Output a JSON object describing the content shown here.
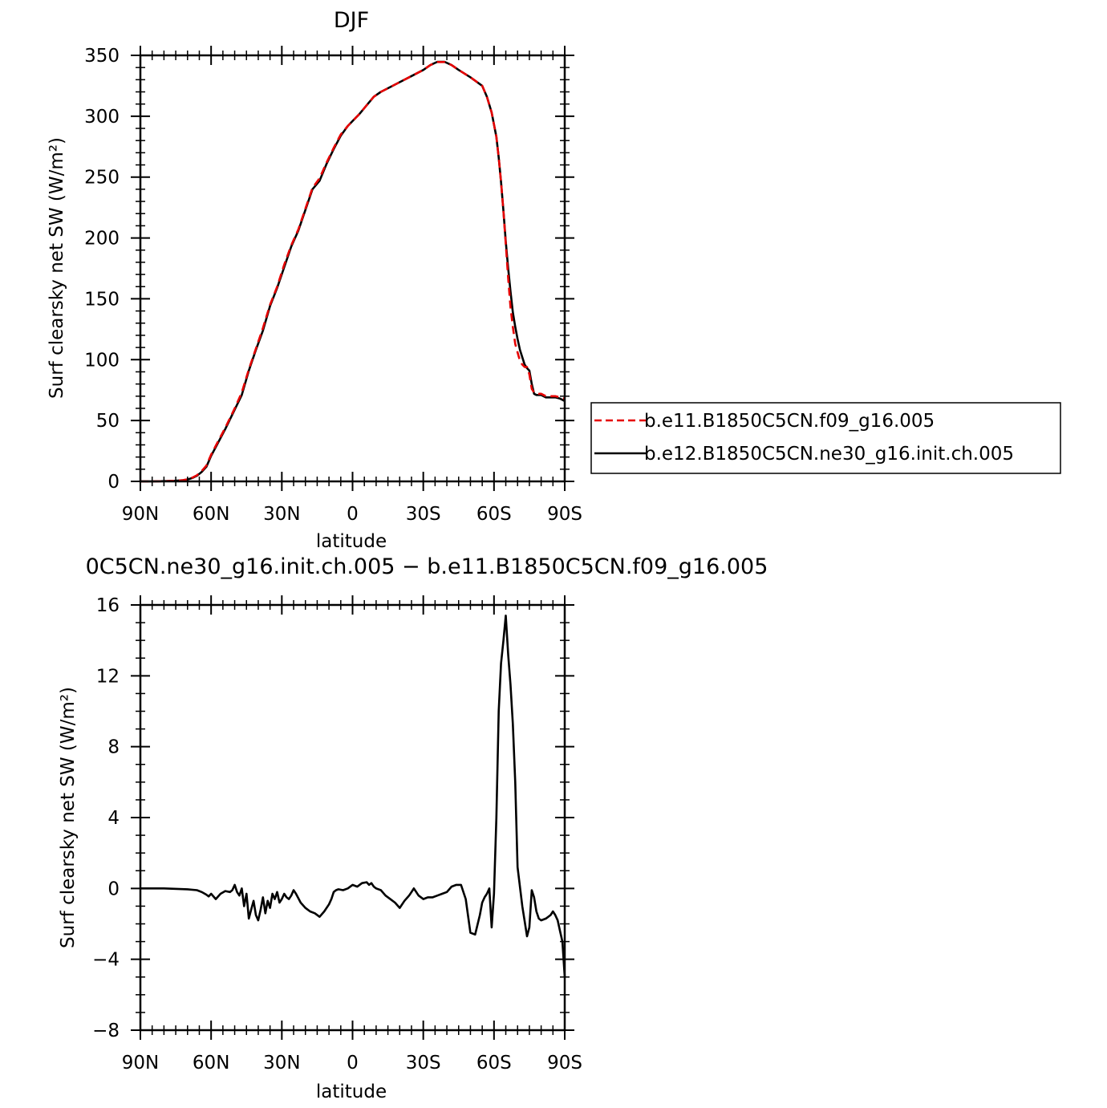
{
  "chart_data": [
    {
      "type": "line",
      "title": "DJF",
      "xlabel": "latitude",
      "ylabel": "Surf clearsky net SW (W/m²)",
      "xlim": [
        -90,
        90
      ],
      "ylim": [
        0,
        350
      ],
      "x_ticks": [
        -90,
        -60,
        -30,
        0,
        30,
        60,
        90
      ],
      "x_tick_labels": [
        "90N",
        "60N",
        "30N",
        "0",
        "30S",
        "60S",
        "90S"
      ],
      "y_ticks": [
        0,
        50,
        100,
        150,
        200,
        250,
        300,
        350
      ],
      "y_tick_labels": [
        "0",
        "50",
        "100",
        "150",
        "200",
        "250",
        "300",
        "350"
      ],
      "legend_position": "right",
      "series": [
        {
          "name": "b.e11.B1850C5CN.f09_g16.005",
          "color": "#e60000",
          "dash": "dashed",
          "x": [
            -90,
            -85,
            -80,
            -75,
            -72,
            -70,
            -68,
            -66,
            -64,
            -62,
            -60,
            -57,
            -54,
            -50,
            -47,
            -44,
            -41,
            -38,
            -35,
            -32,
            -29,
            -26,
            -23,
            -20,
            -17,
            -14,
            -11,
            -8,
            -5,
            -2,
            0,
            3,
            6,
            9,
            12,
            15,
            20,
            25,
            30,
            33,
            36,
            39,
            42,
            45,
            50,
            55,
            57,
            59,
            61,
            62,
            63,
            64,
            65,
            66,
            67,
            68,
            69,
            70,
            71,
            72,
            73,
            74,
            75,
            76,
            77,
            78,
            79,
            80,
            82,
            84,
            86,
            88,
            90
          ],
          "y": [
            0,
            0,
            0.2,
            0.5,
            1,
            1.7,
            3,
            5,
            8.5,
            13,
            22,
            33,
            44,
            60,
            73,
            92,
            109,
            126,
            145,
            160,
            178,
            194,
            207,
            224,
            241,
            249,
            262,
            274,
            285,
            292,
            296,
            302,
            309,
            316,
            320,
            323,
            328,
            333,
            338,
            342,
            344.5,
            344.5,
            342,
            338,
            332,
            325,
            316,
            303,
            283,
            266,
            246,
            222,
            195,
            167,
            143,
            127,
            113,
            106,
            99,
            96,
            94,
            94,
            88,
            76,
            73,
            73,
            72,
            72,
            70,
            70,
            70,
            69,
            68
          ]
        },
        {
          "name": "b.e12.B1850C5CN.ne30_g16.init.ch.005",
          "color": "#000000",
          "dash": "solid",
          "x": [
            -90,
            -85,
            -80,
            -75,
            -72,
            -70,
            -68,
            -66,
            -64,
            -62,
            -60,
            -57,
            -54,
            -50,
            -47,
            -44,
            -41,
            -38,
            -35,
            -32,
            -29,
            -26,
            -23,
            -20,
            -17,
            -14,
            -11,
            -8,
            -5,
            -2,
            0,
            3,
            6,
            9,
            12,
            15,
            20,
            25,
            30,
            33,
            36,
            39,
            42,
            45,
            50,
            55,
            57,
            59,
            61,
            62,
            63,
            64,
            65,
            66,
            67,
            68,
            69,
            70,
            71,
            72,
            73,
            74,
            75,
            76,
            77,
            78,
            79,
            80,
            82,
            84,
            86,
            88,
            90
          ],
          "y": [
            0,
            0,
            0.2,
            0.5,
            1,
            1.6,
            2.8,
            4.6,
            7.8,
            12,
            21,
            32,
            43,
            59,
            71,
            91,
            108,
            124,
            144,
            159,
            176,
            193,
            206,
            223,
            240,
            247,
            261,
            273,
            284,
            292,
            296,
            302,
            309,
            316,
            320,
            323,
            328,
            333,
            338,
            342,
            344.7,
            344.7,
            342,
            338,
            332,
            325,
            316,
            303,
            283,
            266,
            246,
            222,
            197,
            175,
            156,
            139,
            127,
            117,
            108,
            102,
            96,
            93,
            91,
            80,
            72,
            71,
            71,
            71,
            69,
            69,
            69,
            68,
            66
          ]
        }
      ]
    },
    {
      "type": "line",
      "title": "0C5CN.ne30_g16.init.ch.005 − b.e11.B1850C5CN.f09_g16.005",
      "xlabel": "latitude",
      "ylabel": "Surf clearsky net SW (W/m²)",
      "xlim": [
        -90,
        90
      ],
      "ylim": [
        -8,
        16
      ],
      "x_ticks": [
        -90,
        -60,
        -30,
        0,
        30,
        60,
        90
      ],
      "x_tick_labels": [
        "90N",
        "60N",
        "30N",
        "0",
        "30S",
        "60S",
        "90S"
      ],
      "y_ticks": [
        -8,
        -4,
        0,
        4,
        8,
        12,
        16
      ],
      "y_tick_labels": [
        "−8",
        "−4",
        "0",
        "4",
        "8",
        "12",
        "16"
      ],
      "series": [
        {
          "color": "#000000",
          "dash": "solid",
          "x": [
            -90,
            -80,
            -70,
            -66,
            -64,
            -62,
            -61,
            -60,
            -58,
            -56,
            -54,
            -52,
            -51,
            -50,
            -49,
            -48,
            -47,
            -46,
            -45,
            -44,
            -43,
            -42,
            -41,
            -40,
            -39,
            -38,
            -37,
            -36,
            -35,
            -34,
            -33,
            -32,
            -31,
            -30,
            -29,
            -28,
            -27,
            -26,
            -25,
            -24,
            -22,
            -20,
            -18,
            -16,
            -14,
            -12,
            -10,
            -9,
            -8,
            -7,
            -6,
            -4,
            -2,
            0,
            2,
            4,
            6,
            7,
            8,
            9,
            10,
            12,
            14,
            16,
            18,
            20,
            22,
            24,
            25,
            26,
            27,
            28,
            30,
            32,
            34,
            36,
            38,
            40,
            42,
            44,
            46,
            48,
            50,
            52,
            54,
            55,
            56,
            57,
            58,
            59,
            60,
            61,
            62,
            63,
            64,
            65,
            66,
            67,
            68,
            69,
            70,
            72,
            74,
            75,
            76,
            77,
            78,
            79,
            80,
            82,
            84,
            85,
            86,
            87,
            88,
            89,
            90
          ],
          "y": [
            0,
            0,
            -0.05,
            -0.1,
            -0.2,
            -0.35,
            -0.45,
            -0.3,
            -0.6,
            -0.3,
            -0.15,
            -0.2,
            -0.1,
            0.2,
            -0.2,
            -0.4,
            0,
            -1,
            -0.3,
            -1.7,
            -1.2,
            -0.7,
            -1.5,
            -1.8,
            -1.2,
            -0.5,
            -1.4,
            -0.7,
            -1.1,
            -0.3,
            -0.6,
            -0.2,
            -0.8,
            -0.6,
            -0.3,
            -0.5,
            -0.6,
            -0.4,
            -0.1,
            -0.3,
            -0.8,
            -1.1,
            -1.3,
            -1.4,
            -1.6,
            -1.3,
            -0.9,
            -0.6,
            -0.2,
            -0.1,
            -0.05,
            -0.1,
            0,
            0.2,
            0.1,
            0.3,
            0.35,
            0.2,
            0.3,
            0.1,
            0,
            -0.1,
            -0.4,
            -0.6,
            -0.8,
            -1.1,
            -0.7,
            -0.4,
            -0.2,
            0,
            -0.2,
            -0.4,
            -0.6,
            -0.5,
            -0.5,
            -0.4,
            -0.3,
            -0.2,
            0.1,
            0.2,
            0.2,
            -0.6,
            -2.5,
            -2.6,
            -1.5,
            -0.8,
            -0.5,
            -0.3,
            0,
            -2.2,
            -0.3,
            4,
            10,
            12.7,
            14,
            15.4,
            13.2,
            11.5,
            9.3,
            6,
            1.2,
            -1,
            -2.7,
            -2.2,
            -0.1,
            -0.5,
            -1.3,
            -1.7,
            -1.8,
            -1.7,
            -1.5,
            -1.3,
            -1.5,
            -1.8,
            -2.4,
            -3,
            -5
          ]
        }
      ]
    }
  ]
}
